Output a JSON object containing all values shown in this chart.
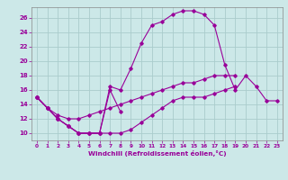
{
  "xlabel": "Windchill (Refroidissement éolien,°C)",
  "bg_color": "#cce8e8",
  "line_color": "#990099",
  "grid_color": "#aacccc",
  "series": [
    [
      15.0,
      13.5,
      12.0,
      11.0,
      10.0,
      10.0,
      10.0,
      16.0,
      13.0,
      null,
      null,
      null,
      null,
      null,
      null,
      null,
      null,
      null,
      null,
      null,
      null,
      null,
      null,
      null
    ],
    [
      15.0,
      13.5,
      12.0,
      11.0,
      10.0,
      10.0,
      10.0,
      10.0,
      10.0,
      10.5,
      11.5,
      12.5,
      13.5,
      14.5,
      15.0,
      15.0,
      15.0,
      15.5,
      16.0,
      16.5,
      null,
      null,
      null,
      null
    ],
    [
      15.0,
      13.5,
      12.5,
      12.0,
      12.0,
      12.5,
      13.0,
      13.5,
      14.0,
      14.5,
      15.0,
      15.5,
      16.0,
      16.5,
      17.0,
      17.0,
      17.5,
      18.0,
      18.0,
      18.0,
      null,
      null,
      null,
      null
    ],
    [
      15.0,
      13.5,
      12.0,
      11.0,
      10.0,
      10.0,
      10.0,
      16.5,
      16.0,
      19.0,
      22.5,
      25.0,
      25.5,
      26.5,
      27.0,
      27.0,
      26.5,
      25.0,
      19.5,
      16.0,
      18.0,
      16.5,
      14.5,
      14.5
    ]
  ],
  "xlim": [
    -0.5,
    23.5
  ],
  "ylim": [
    9.0,
    27.5
  ],
  "yticks": [
    10,
    12,
    14,
    16,
    18,
    20,
    22,
    24,
    26
  ],
  "xticks": [
    0,
    1,
    2,
    3,
    4,
    5,
    6,
    7,
    8,
    9,
    10,
    11,
    12,
    13,
    14,
    15,
    16,
    17,
    18,
    19,
    20,
    21,
    22,
    23
  ]
}
